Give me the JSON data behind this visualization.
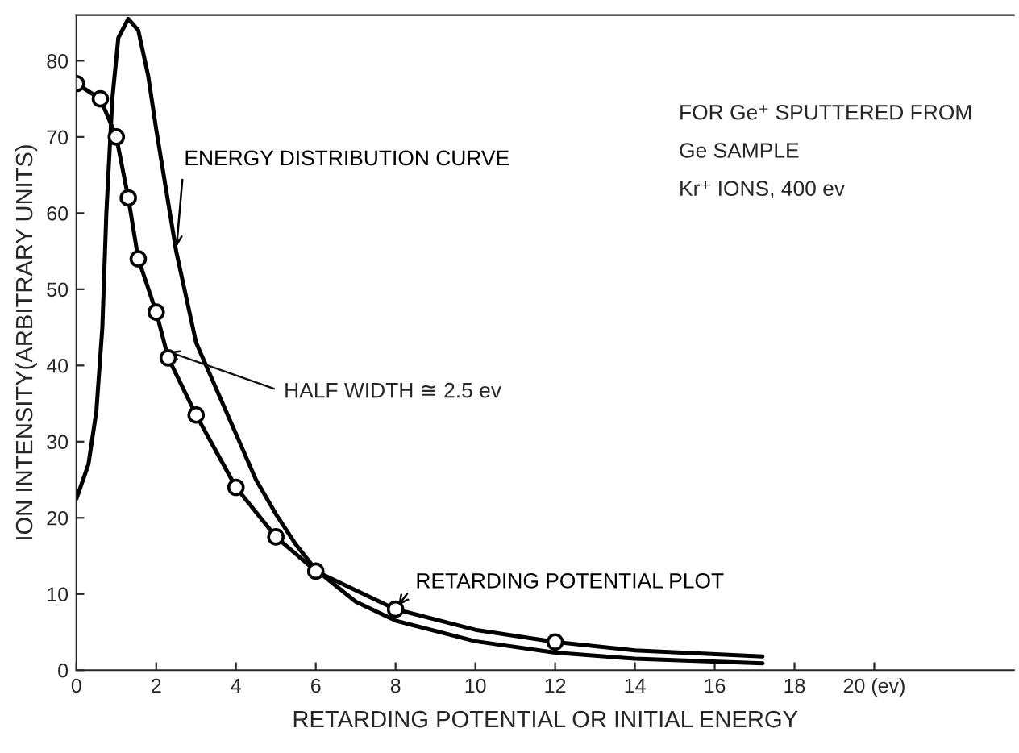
{
  "chart_data": {
    "type": "line",
    "xlabel": "RETARDING POTENTIAL OR INITIAL ENERGY",
    "ylabel": "ION INTENSITY(ARBITRARY UNITS)",
    "xlim": [
      0,
      23.5
    ],
    "ylim": [
      0,
      86
    ],
    "xticks": [
      0,
      2,
      4,
      6,
      8,
      10,
      12,
      14,
      16,
      18,
      {
        "value": 20,
        "label": "20 (ev)"
      }
    ],
    "yticks": [
      0,
      10,
      20,
      30,
      40,
      50,
      60,
      70,
      80
    ],
    "grid": false,
    "legend": false,
    "series": [
      {
        "name": "RETARDING POTENTIAL PLOT",
        "color": "#000000",
        "x": [
          0,
          0.6,
          1,
          1.3,
          1.55,
          2,
          2.3,
          3,
          4,
          5,
          6,
          8,
          10,
          12,
          14,
          17.2
        ],
        "values": [
          77,
          75,
          70,
          62,
          54,
          47,
          41,
          33.5,
          24,
          17.5,
          13,
          8,
          5.3,
          3.7,
          2.6,
          1.8
        ]
      },
      {
        "type": "scatter",
        "marker": "circle",
        "color": "#000000",
        "x": [
          0,
          0.6,
          1,
          1.3,
          1.55,
          2,
          2.3,
          3,
          4,
          5,
          6,
          8,
          12
        ],
        "values": [
          77,
          75,
          70,
          62,
          54,
          47,
          41,
          33.5,
          24,
          17.5,
          13,
          8,
          3.7
        ]
      },
      {
        "name": "ENERGY DISTRIBUTION CURVE",
        "color": "#000000",
        "x": [
          0,
          0.3,
          0.5,
          0.65,
          0.75,
          0.9,
          1.05,
          1.3,
          1.55,
          1.8,
          2,
          2.5,
          3,
          3.5,
          4,
          4.5,
          5,
          5.5,
          6,
          7,
          8,
          10,
          12,
          14,
          17.2
        ],
        "values": [
          22.5,
          27,
          34,
          45,
          60,
          75,
          83,
          85.5,
          84,
          78,
          71,
          55,
          43,
          37,
          31,
          25,
          20.5,
          16.5,
          13.2,
          9,
          6.5,
          3.8,
          2.3,
          1.5,
          0.9
        ]
      }
    ],
    "annotations": [
      "FOR Ge⁺ SPUTTERED FROM",
      "Ge SAMPLE",
      "Kr⁺ IONS, 400 ev",
      {
        "text": "HALF WIDTH ≅ 2.5 ev",
        "x": 2.2,
        "y": 42
      }
    ]
  }
}
